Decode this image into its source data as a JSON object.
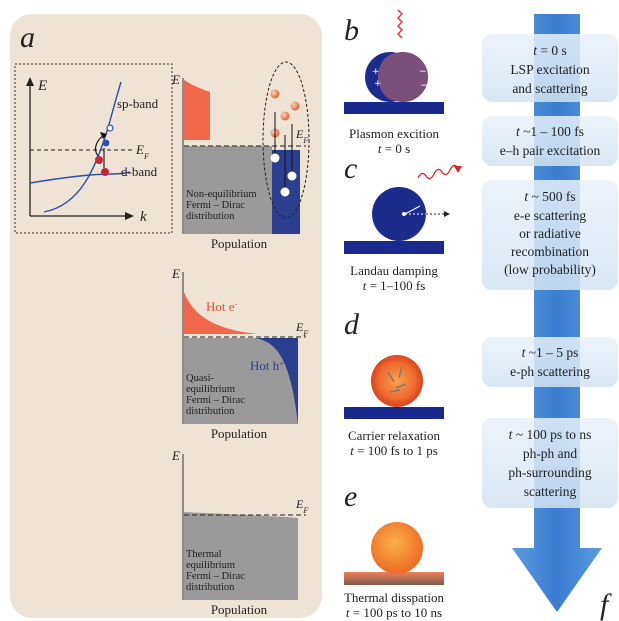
{
  "panel_letters": {
    "a": "a",
    "b": "b",
    "c": "c",
    "d": "d",
    "e": "e",
    "f": "f"
  },
  "band_diagram": {
    "energy_axis": "E",
    "k_axis": "k",
    "sp_band": "sp-band",
    "d_band": "d-band",
    "fermi": "E",
    "fermi_sub": "F"
  },
  "populations": [
    {
      "axis_e": "E",
      "xlabel": "Population",
      "fermi": "E",
      "fermi_sub": "F",
      "desc": [
        "Non-equilibrium",
        "Fermi – Dirac",
        "distribution"
      ]
    },
    {
      "axis_e": "E",
      "xlabel": "Population",
      "fermi": "E",
      "fermi_sub": "F",
      "desc": [
        "Quasi-",
        "equilibrium",
        "Fermi – Dirac",
        "distribution"
      ],
      "hot_e": "Hot e",
      "hot_e_sup": "-",
      "hot_h": "Hot h",
      "hot_h_sup": "+"
    },
    {
      "axis_e": "E",
      "xlabel": "Population",
      "fermi": "E",
      "fermi_sub": "F",
      "desc": [
        "Thermal",
        "equilibrium",
        "Fermi – Dirac",
        "distribution"
      ]
    }
  ],
  "steps": [
    {
      "label": "Plasmon excition",
      "time_var": "t",
      "time": " = 0 s"
    },
    {
      "label": "Landau damping",
      "time_var": "t",
      "time": " = 1–100 fs"
    },
    {
      "label": "Carrier relaxation",
      "time_var": "t",
      "time": " = 100 fs to 1 ps"
    },
    {
      "label": "Thermal disspation",
      "time_var": "t",
      "time": " = 100 ps to 10 ns"
    }
  ],
  "timeline": [
    {
      "t": "t",
      "time": " = 0 s",
      "lines": [
        "LSP excitation",
        "and scattering"
      ]
    },
    {
      "t": "t",
      "time": " ~1 – 100 fs",
      "lines": [
        "e–h pair excitation"
      ]
    },
    {
      "t": "t",
      "time": " ~ 500 fs",
      "lines": [
        "e-e scattering",
        "or radiative",
        "recombination",
        "(low probability)"
      ]
    },
    {
      "t": "t",
      "time": " ~1 – 5 ps",
      "lines": [
        "e-ph scattering"
      ]
    },
    {
      "t": "t",
      "time": " ~ 100 ps to ns",
      "lines": [
        "ph-ph and",
        "ph-surrounding",
        "scattering"
      ]
    }
  ],
  "colors": {
    "panel_bg": "#efe3d6",
    "hot_electron": "#f0674a",
    "hot_hole": "#2c3e8e",
    "equilibrium_gray": "#9a9a9a",
    "arrow_blue": "#3d7fd4",
    "box_blue": "#dce8f4"
  }
}
